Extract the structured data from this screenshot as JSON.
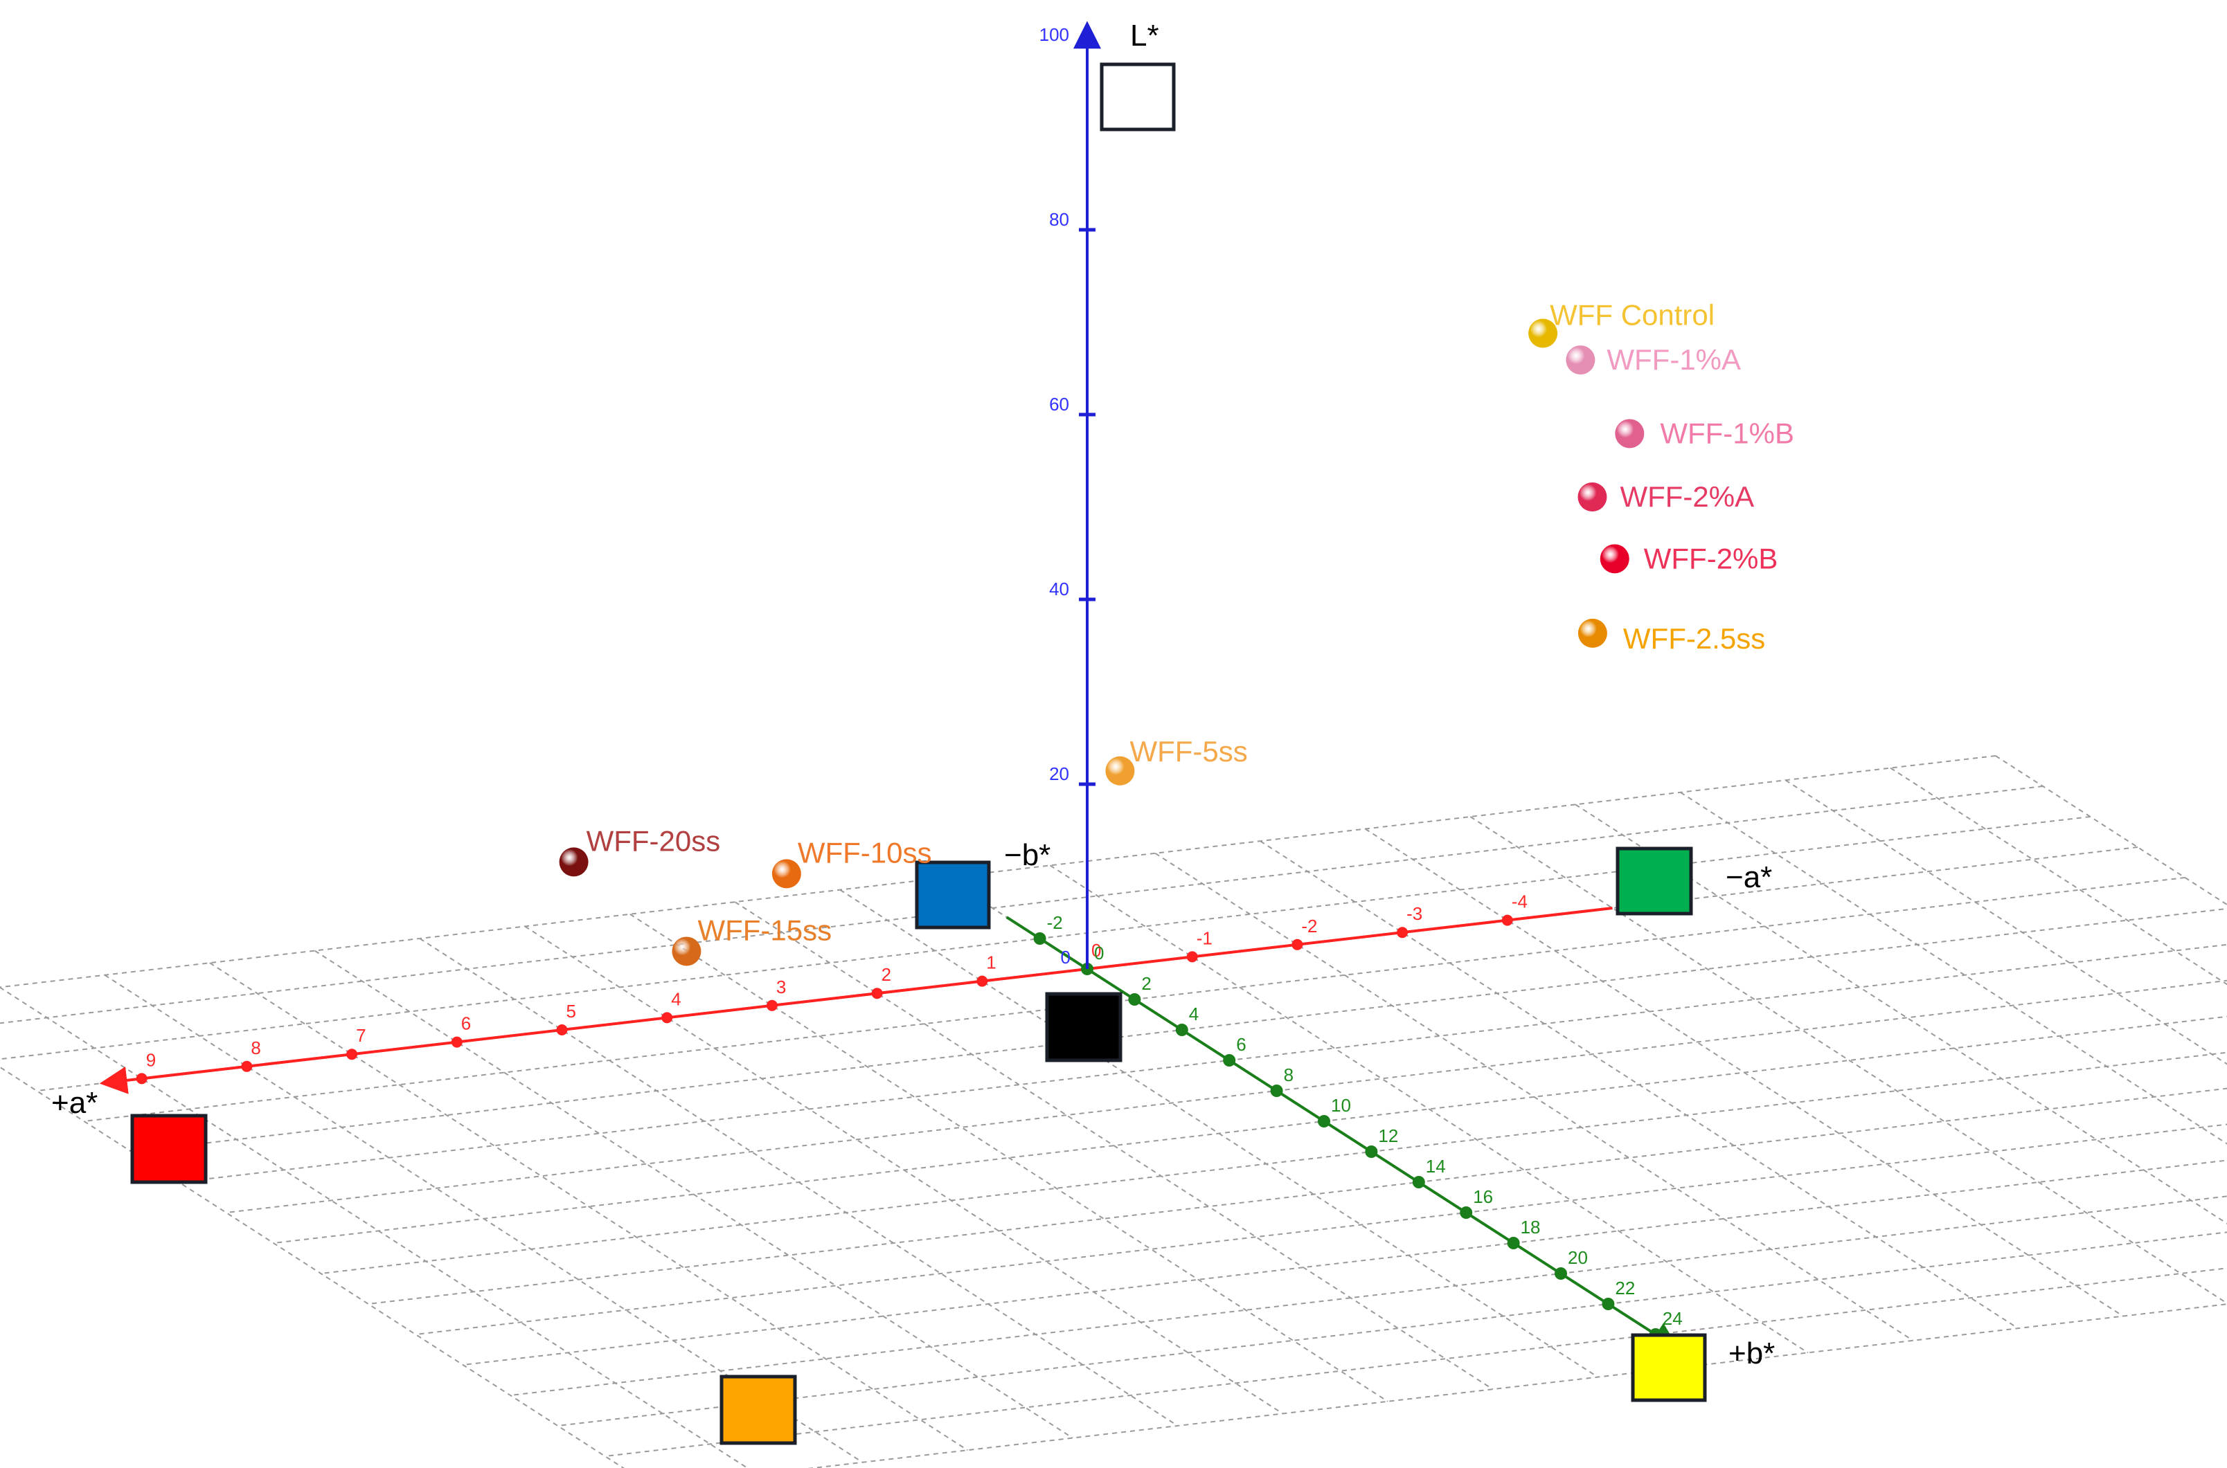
{
  "chart_data": {
    "type": "scatter",
    "projection": "3d",
    "axes": {
      "a": {
        "negative_label": "−a*",
        "positive_label": "+a*",
        "tick_labels": [
          "-4",
          "-3",
          "-2",
          "-1",
          "0",
          "1",
          "2",
          "3",
          "4",
          "5",
          "6",
          "7",
          "8",
          "9"
        ],
        "tick_values": [
          -4,
          -3,
          -2,
          -1,
          0,
          1,
          2,
          3,
          4,
          5,
          6,
          7,
          8,
          9
        ],
        "color": "#ff2020"
      },
      "b": {
        "negative_label": "−b*",
        "positive_label": "+b*",
        "tick_labels": [
          "-2",
          "0",
          "2",
          "4",
          "6",
          "8",
          "10",
          "12",
          "14",
          "16",
          "18",
          "20",
          "22",
          "24"
        ],
        "tick_values": [
          -2,
          0,
          2,
          4,
          6,
          8,
          10,
          12,
          14,
          16,
          18,
          20,
          22,
          24
        ],
        "color": "#1a7f1a"
      },
      "L": {
        "label": "L*",
        "tick_labels": [
          "20",
          "40",
          "60",
          "80",
          "100"
        ],
        "tick_values": [
          20,
          40,
          60,
          80,
          100
        ],
        "color": "#1f1fd6"
      }
    },
    "grid": true,
    "reference_swatches": [
      {
        "name": "white",
        "color": "#ffffff"
      },
      {
        "name": "green",
        "color": "#00b050"
      },
      {
        "name": "blue",
        "color": "#0070c0"
      },
      {
        "name": "black",
        "color": "#000000"
      },
      {
        "name": "red",
        "color": "#ff0000"
      },
      {
        "name": "yellow",
        "color": "#ffff00"
      },
      {
        "name": "orange",
        "color": "#ffa500"
      }
    ],
    "series": [
      {
        "name": "WFF Control",
        "a": -4.0,
        "b": 1.5,
        "L": 66,
        "color": "#e6b800",
        "label_color": "#f5c232"
      },
      {
        "name": "WFF-1%A",
        "a": -4.2,
        "b": 2.2,
        "L": 64,
        "color": "#e68fb5",
        "label_color": "#f29ac2"
      },
      {
        "name": "WFF-1%B",
        "a": -4.6,
        "b": 2.5,
        "L": 56,
        "color": "#e0608f",
        "label_color": "#f27aa8"
      },
      {
        "name": "WFF-2%A",
        "a": -4.2,
        "b": 2.7,
        "L": 50,
        "color": "#e02a55",
        "label_color": "#e63a64"
      },
      {
        "name": "WFF-2%B",
        "a": -4.3,
        "b": 3.2,
        "L": 44,
        "color": "#e8002a",
        "label_color": "#ee3158"
      },
      {
        "name": "WFF-2.5ss",
        "a": -4.0,
        "b": 3.6,
        "L": 37,
        "color": "#e88a00",
        "label_color": "#f5a300"
      },
      {
        "name": "WFF-5ss",
        "a": -0.2,
        "b": 0.5,
        "L": 22,
        "color": "#f0a030",
        "label_color": "#f5a84a"
      },
      {
        "name": "WFF-10ss",
        "a": 3.2,
        "b": 1.5,
        "L": 17,
        "color": "#e86a10",
        "label_color": "#f0782a"
      },
      {
        "name": "WFF-15ss",
        "a": 4.4,
        "b": 2.6,
        "L": 12,
        "color": "#d66a1a",
        "label_color": "#e87f2a"
      },
      {
        "name": "WFF-20ss",
        "a": 5.0,
        "b": 0.5,
        "L": 19,
        "color": "#7a1010",
        "label_color": "#b24040"
      }
    ]
  }
}
